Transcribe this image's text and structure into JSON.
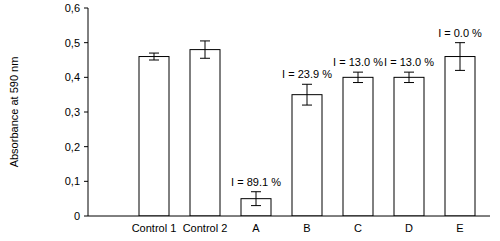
{
  "chart_data": {
    "type": "bar",
    "y_label": "Absorbance at 590 nm",
    "categories": [
      "Control 1",
      "Control 2",
      "A",
      "B",
      "C",
      "D",
      "E"
    ],
    "values": [
      0.46,
      0.48,
      0.05,
      0.35,
      0.4,
      0.4,
      0.46
    ],
    "errors": [
      0.01,
      0.025,
      0.02,
      0.03,
      0.015,
      0.015,
      0.04
    ],
    "bar_labels": [
      null,
      null,
      "I = 89.1 %",
      "I = 23.9 %",
      "I = 13.0 %",
      "I = 13.0 %",
      "I = 0.0 %"
    ],
    "color": "#ffffff",
    "ylim": [
      0,
      0.6
    ],
    "yticks": [
      {
        "value": 0,
        "label": "0"
      },
      {
        "value": 0.1,
        "label": "0,1"
      },
      {
        "value": 0.2,
        "label": "0,2"
      },
      {
        "value": 0.3,
        "label": "0,3"
      },
      {
        "value": 0.4,
        "label": "0,4"
      },
      {
        "value": 0.5,
        "label": "0,5"
      },
      {
        "value": 0.6,
        "label": "0,6"
      }
    ],
    "grid": false
  }
}
